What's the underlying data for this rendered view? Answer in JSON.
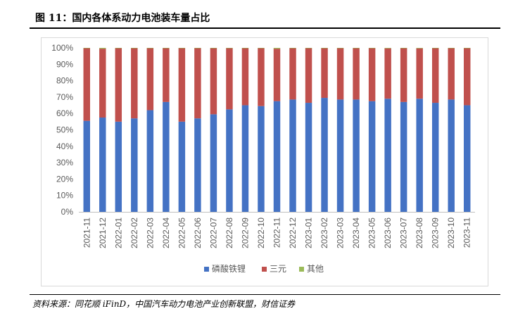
{
  "figure": {
    "title": "图 11：国内各体系动力电池装车量占比",
    "source": "资料来源：同花顺 iFinD，中国汽车动力电池产业创新联盟，财信证券"
  },
  "chart_data": {
    "type": "bar",
    "stacked": true,
    "categories": [
      "2021-11",
      "2021-12",
      "2022-01",
      "2022-02",
      "2022-03",
      "2022-04",
      "2022-05",
      "2022-06",
      "2022-07",
      "2022-08",
      "2022-09",
      "2022-10",
      "2022-11",
      "2022-12",
      "2023-01",
      "2023-02",
      "2023-03",
      "2023-04",
      "2023-05",
      "2023-06",
      "2023-07",
      "2023-08",
      "2023-09",
      "2023-10",
      "2023-11"
    ],
    "series": [
      {
        "name": "磷酸铁锂",
        "color": "#4472c4",
        "values": [
          55.5,
          57.5,
          55,
          57,
          62,
          67,
          55,
          57,
          59.5,
          62.5,
          65,
          64.5,
          67.5,
          68.5,
          66.5,
          69.5,
          68.5,
          68.5,
          67.5,
          69,
          67,
          69,
          66.5,
          68.5,
          65
        ]
      },
      {
        "name": "三元",
        "color": "#c0504d",
        "values": [
          44.3,
          42,
          44.8,
          42.8,
          37.8,
          32.8,
          44.8,
          42.8,
          40.3,
          37.3,
          34.8,
          35.3,
          32,
          31.3,
          33.3,
          30.3,
          31.3,
          31.3,
          32.3,
          30.7,
          32.8,
          30.7,
          33.3,
          31.3,
          34.8
        ]
      },
      {
        "name": "其他",
        "color": "#9bbb59",
        "values": [
          0.2,
          0.5,
          0.2,
          0.2,
          0.2,
          0.2,
          0.2,
          0.2,
          0.2,
          0.2,
          0.2,
          0.2,
          0.5,
          0.2,
          0.2,
          0.2,
          0.2,
          0.2,
          0.2,
          0.3,
          0.2,
          0.3,
          0.2,
          0.2,
          0.2
        ]
      }
    ],
    "ylim": [
      0,
      100
    ],
    "ytick_labels": [
      "0%",
      "10%",
      "20%",
      "30%",
      "40%",
      "50%",
      "60%",
      "70%",
      "80%",
      "90%",
      "100%"
    ],
    "grid": false,
    "legend_position": "bottom"
  }
}
